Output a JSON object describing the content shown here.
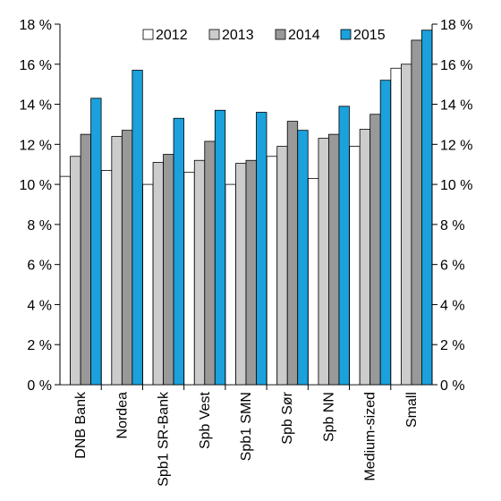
{
  "chart_data": {
    "type": "bar",
    "title": "",
    "xlabel": "",
    "ylabel": "",
    "ylim": [
      0,
      18
    ],
    "y_ticks": [
      "0 %",
      "2 %",
      "4 %",
      "6 %",
      "8 %",
      "10 %",
      "12 %",
      "14 %",
      "16 %",
      "18 %"
    ],
    "y_tick_values": [
      0,
      2,
      4,
      6,
      8,
      10,
      12,
      14,
      16,
      18
    ],
    "secondary_axis": "mirrored right axis, same scale",
    "grid": false,
    "legend_position": "top",
    "categories": [
      "DNB Bank",
      "Nordea",
      "Spb1 SR-Bank",
      "Spb Vest",
      "Spb1 SMN",
      "Spb Sør",
      "Spb NN",
      "Medium-sized",
      "Small"
    ],
    "series": [
      {
        "name": "2012",
        "color": "#ffffff",
        "values": [
          10.4,
          10.7,
          10.0,
          10.6,
          10.0,
          11.4,
          10.3,
          11.9,
          15.8
        ]
      },
      {
        "name": "2013",
        "color": "#cccccc",
        "values": [
          11.4,
          12.4,
          11.1,
          11.2,
          11.05,
          11.9,
          12.3,
          12.75,
          16.0
        ]
      },
      {
        "name": "2014",
        "color": "#999999",
        "values": [
          12.5,
          12.7,
          11.5,
          12.15,
          11.2,
          13.15,
          12.5,
          13.5,
          17.2
        ]
      },
      {
        "name": "2015",
        "color": "#1ba1dc",
        "values": [
          14.3,
          15.7,
          13.3,
          13.7,
          13.6,
          12.7,
          13.9,
          15.2,
          17.7
        ]
      }
    ]
  }
}
